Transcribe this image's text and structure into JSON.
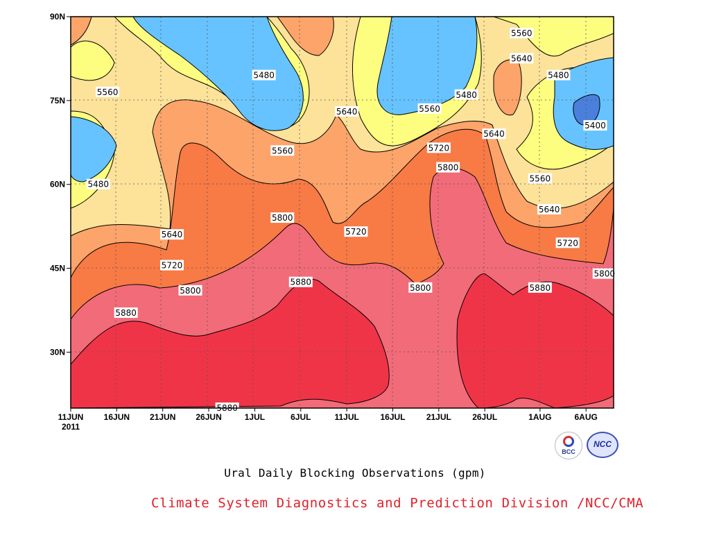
{
  "chart_data": {
    "type": "contour",
    "title": "Ural Daily Blocking Observations (gpm)",
    "x_ticks": [
      "11JUN",
      "16JUN",
      "21JUN",
      "26JUN",
      "1JUL",
      "6JUL",
      "11JUL",
      "16JUL",
      "21JUL",
      "26JUL",
      "1AUG",
      "6AUG"
    ],
    "year_label": "2011",
    "x_range": [
      "2011-06-11",
      "2011-08-09"
    ],
    "y_ticks": [
      "30N",
      "45N",
      "60N",
      "75N",
      "90N"
    ],
    "ylim": [
      20,
      90
    ],
    "contour_levels": [
      5400,
      5480,
      5560,
      5640,
      5720,
      5800,
      5880
    ],
    "fill_colors": {
      "below_5400": "#4a7fdc",
      "5400_5480": "#66c3ff",
      "5480_5560": "#fdfd80",
      "5560_5640": "#fde29a",
      "5640_5720": "#fca46a",
      "5720_5800": "#f87a45",
      "5800_5880": "#f26b78",
      "above_5880": "#f03448"
    },
    "contour_labels": [
      {
        "value": "5560",
        "date": "2011-06-15",
        "lat": 76.5
      },
      {
        "value": "5480",
        "date": "2011-06-14",
        "lat": 60.0
      },
      {
        "value": "5480",
        "date": "2011-07-02",
        "lat": 79.5
      },
      {
        "value": "5560",
        "date": "2011-07-04",
        "lat": 66.0
      },
      {
        "value": "5640",
        "date": "2011-07-11",
        "lat": 73.0
      },
      {
        "value": "5480",
        "date": "2011-07-24",
        "lat": 76.0
      },
      {
        "value": "5560",
        "date": "2011-07-20",
        "lat": 73.5
      },
      {
        "value": "5560",
        "date": "2011-07-30",
        "lat": 87.0
      },
      {
        "value": "5640",
        "date": "2011-07-30",
        "lat": 82.5
      },
      {
        "value": "5480",
        "date": "2011-08-03",
        "lat": 79.5
      },
      {
        "value": "5640",
        "date": "2011-07-27",
        "lat": 69.0
      },
      {
        "value": "5720",
        "date": "2011-07-21",
        "lat": 66.5
      },
      {
        "value": "5800",
        "date": "2011-07-22",
        "lat": 63.0
      },
      {
        "value": "5400",
        "date": "2011-08-07",
        "lat": 70.5
      },
      {
        "value": "5560",
        "date": "2011-08-01",
        "lat": 61.0
      },
      {
        "value": "5640",
        "date": "2011-08-02",
        "lat": 55.5
      },
      {
        "value": "5720",
        "date": "2011-08-04",
        "lat": 49.5
      },
      {
        "value": "5800",
        "date": "2011-08-08",
        "lat": 44.0
      },
      {
        "value": "5880",
        "date": "2011-08-01",
        "lat": 41.5
      },
      {
        "value": "5640",
        "date": "2011-06-22",
        "lat": 51.0
      },
      {
        "value": "5720",
        "date": "2011-06-22",
        "lat": 45.5
      },
      {
        "value": "5800",
        "date": "2011-06-24",
        "lat": 41.0
      },
      {
        "value": "5880",
        "date": "2011-06-17",
        "lat": 37.0
      },
      {
        "value": "5800",
        "date": "2011-07-04",
        "lat": 54.0
      },
      {
        "value": "5720",
        "date": "2011-07-12",
        "lat": 51.5
      },
      {
        "value": "5880",
        "date": "2011-07-06",
        "lat": 42.5
      },
      {
        "value": "5800",
        "date": "2011-07-19",
        "lat": 41.5
      },
      {
        "value": "5880",
        "date": "2011-06-28",
        "lat": 20.0
      }
    ]
  },
  "footer": {
    "title": "Ural Daily Blocking Observations (gpm)",
    "credit": "Climate System Diagnostics and Prediction Division /NCC/CMA",
    "credit_color": "#e0202a",
    "logo_bcc_text": "BCC",
    "logo_ncc_text": "NCC"
  }
}
